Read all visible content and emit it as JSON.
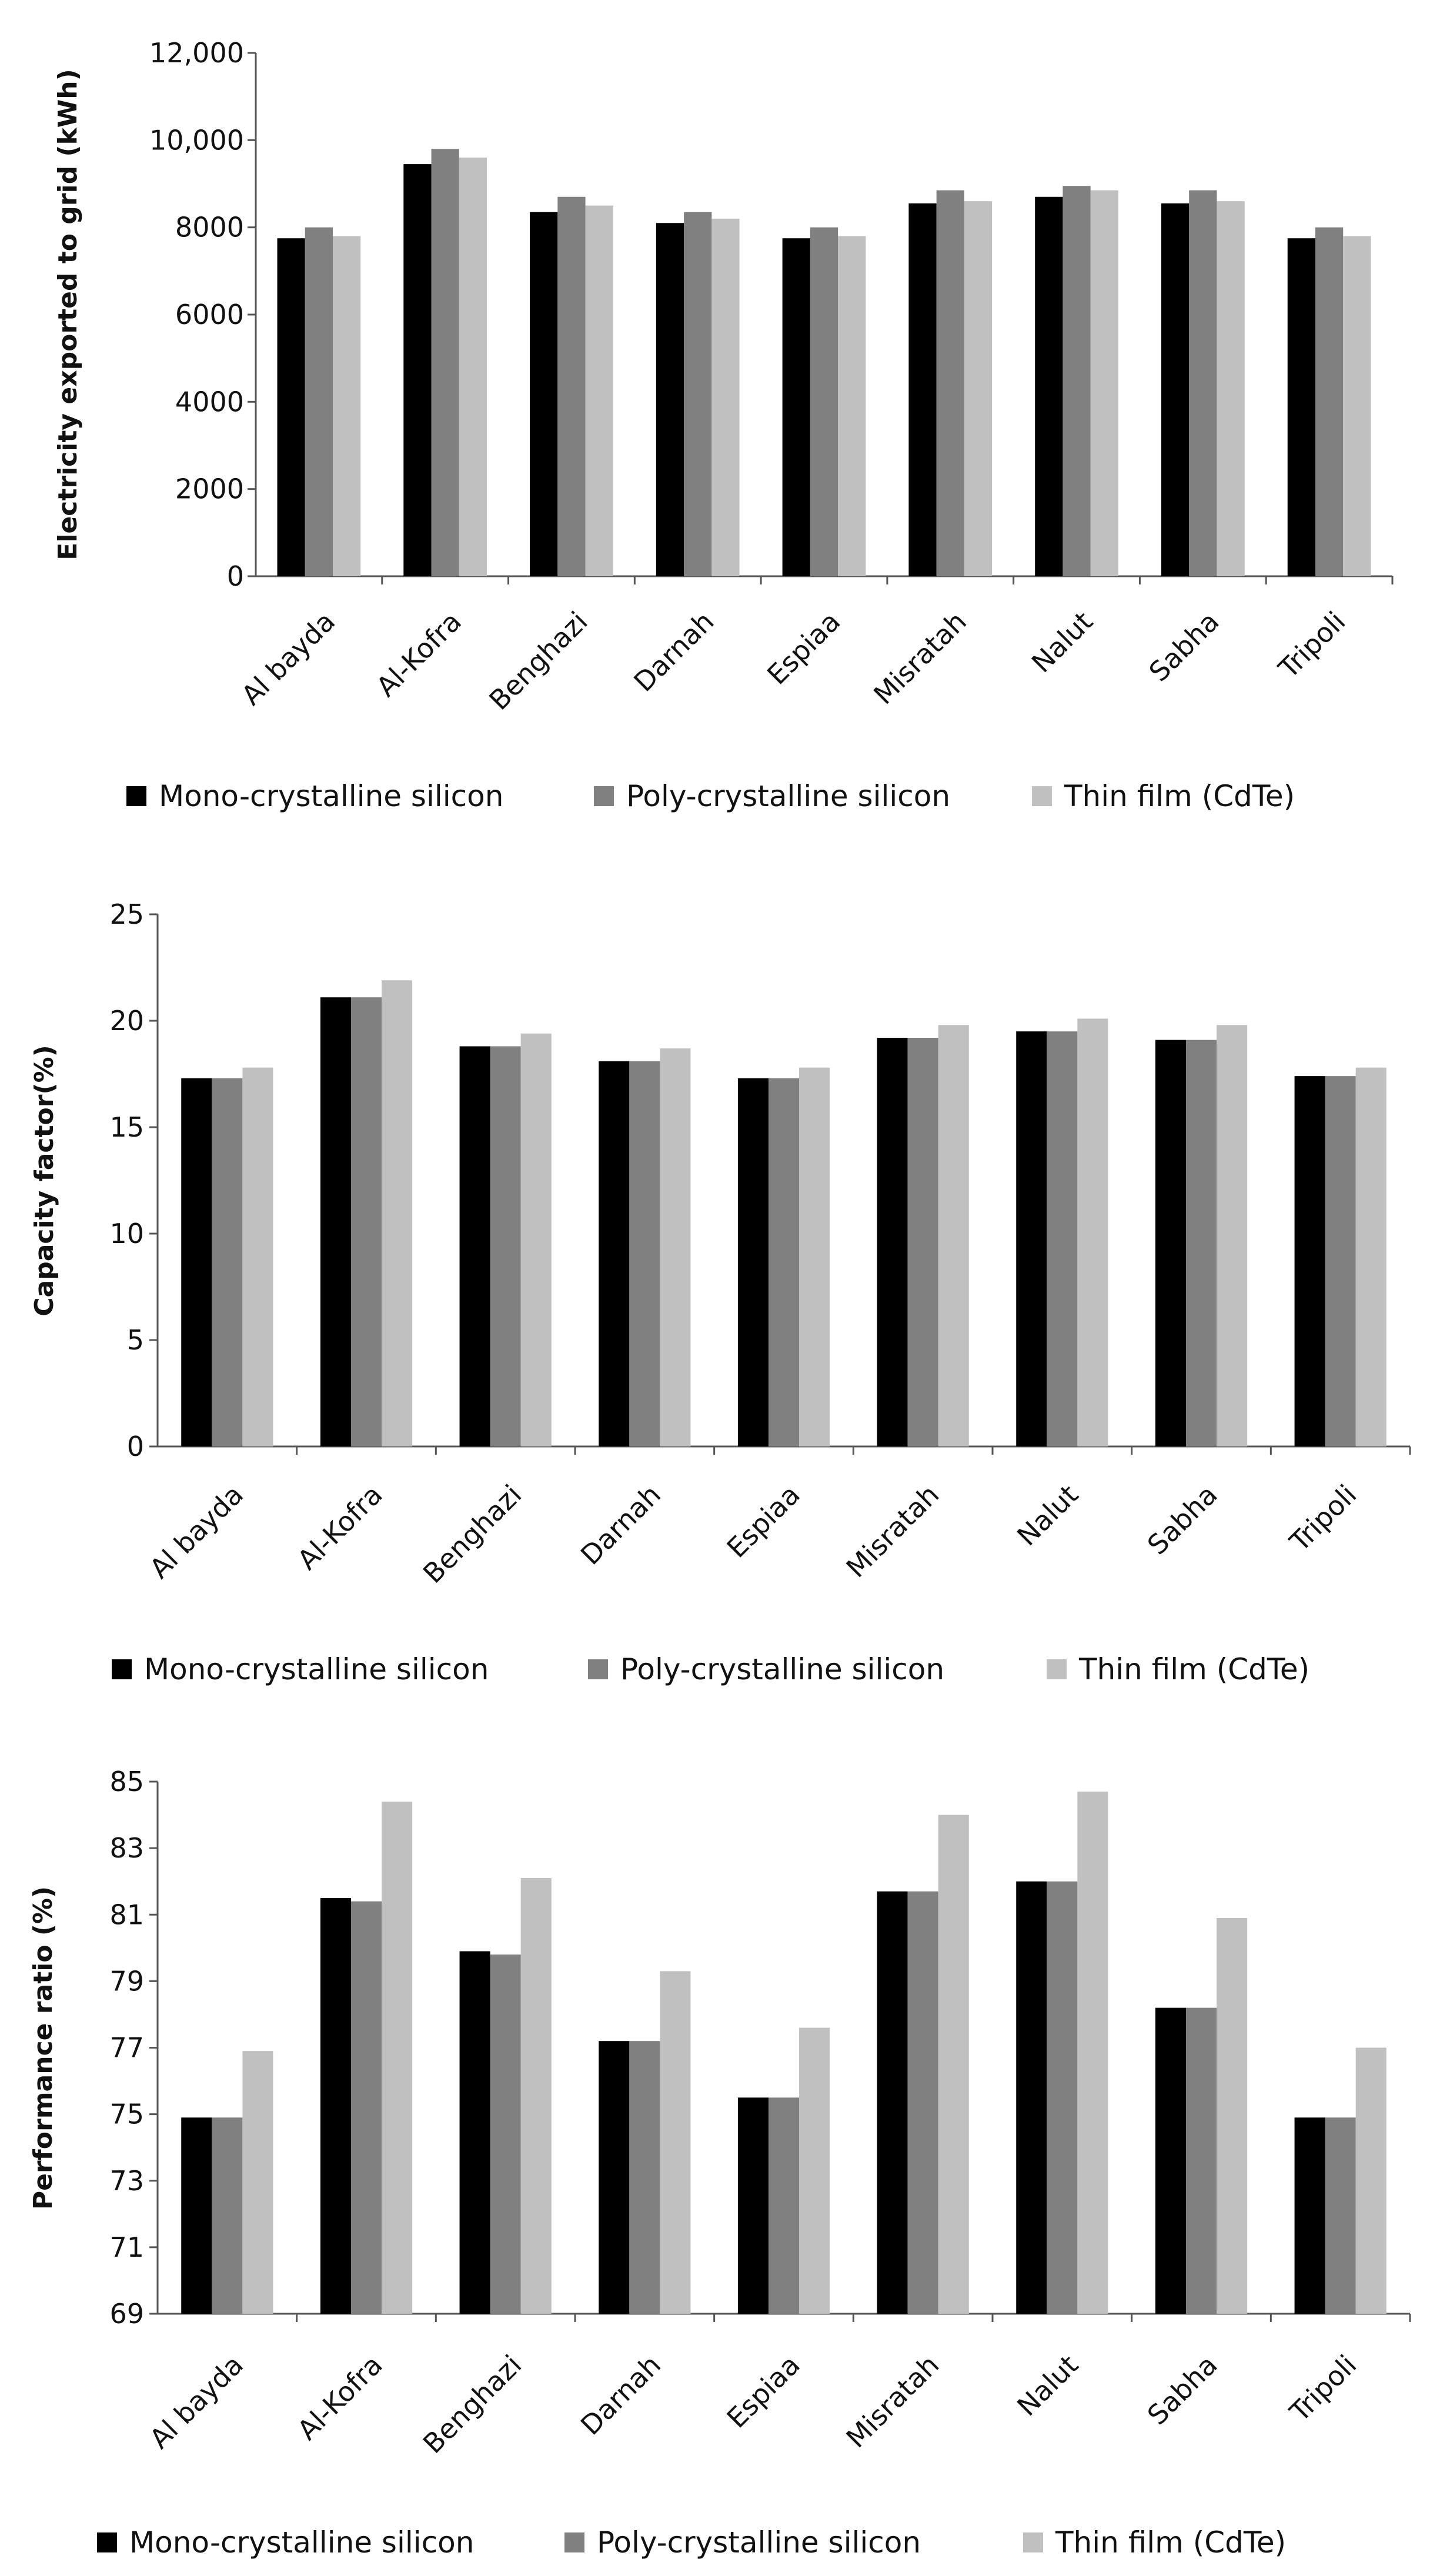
{
  "chart_data": [
    {
      "type": "bar",
      "title": "",
      "xlabel": "",
      "ylabel": "Electricity exported to grid (kWh)",
      "ylim": [
        0,
        12000
      ],
      "yticks": [
        0,
        2000,
        4000,
        6000,
        8000,
        10000,
        12000
      ],
      "ytick_labels": [
        "0",
        "2000",
        "4000",
        "6000",
        "8000",
        "10,000",
        "12,000"
      ],
      "categories": [
        "Al bayda",
        "Al-Kofra",
        "Benghazi",
        "Darnah",
        "Espiaa",
        "Misratah",
        "Nalut",
        "Sabha",
        "Tripoli"
      ],
      "series": [
        {
          "name": "Mono-crystalline silicon",
          "color": "#000000",
          "values": [
            7750,
            9450,
            8350,
            8100,
            7750,
            8550,
            8700,
            8550,
            7750
          ]
        },
        {
          "name": "Poly-crystalline silicon",
          "color": "#808080",
          "values": [
            8000,
            9800,
            8700,
            8350,
            8000,
            8850,
            8950,
            8850,
            8000
          ]
        },
        {
          "name": "Thin film (CdTe)",
          "color": "#c0c0c0",
          "values": [
            7800,
            9600,
            8500,
            8200,
            7800,
            8600,
            8850,
            8600,
            7800
          ]
        }
      ],
      "legend_position": "bottom"
    },
    {
      "type": "bar",
      "title": "",
      "xlabel": "",
      "ylabel": "Capacity factor(%)",
      "ylim": [
        0,
        25
      ],
      "yticks": [
        0,
        5,
        10,
        15,
        20,
        25
      ],
      "ytick_labels": [
        "0",
        "5",
        "10",
        "15",
        "20",
        "25"
      ],
      "categories": [
        "Al bayda",
        "Al-Kofra",
        "Benghazi",
        "Darnah",
        "Espiaa",
        "Misratah",
        "Nalut",
        "Sabha",
        "Tripoli"
      ],
      "series": [
        {
          "name": "Mono-crystalline silicon",
          "color": "#000000",
          "values": [
            17.3,
            21.1,
            18.8,
            18.1,
            17.3,
            19.2,
            19.5,
            19.1,
            17.4
          ]
        },
        {
          "name": "Poly-crystalline silicon",
          "color": "#808080",
          "values": [
            17.3,
            21.1,
            18.8,
            18.1,
            17.3,
            19.2,
            19.5,
            19.1,
            17.4
          ]
        },
        {
          "name": "Thin film (CdTe)",
          "color": "#c0c0c0",
          "values": [
            17.8,
            21.9,
            19.4,
            18.7,
            17.8,
            19.8,
            20.1,
            19.8,
            17.8
          ]
        }
      ],
      "legend_position": "bottom"
    },
    {
      "type": "bar",
      "title": "",
      "xlabel": "",
      "ylabel": "Performance ratio (%)",
      "ylim": [
        69,
        85
      ],
      "yticks": [
        69,
        71,
        73,
        75,
        77,
        79,
        81,
        83,
        85
      ],
      "ytick_labels": [
        "69",
        "71",
        "73",
        "75",
        "77",
        "79",
        "81",
        "83",
        "85"
      ],
      "categories": [
        "Al bayda",
        "Al-Kofra",
        "Benghazi",
        "Darnah",
        "Espiaa",
        "Misratah",
        "Nalut",
        "Sabha",
        "Tripoli"
      ],
      "series": [
        {
          "name": "Mono-crystalline silicon",
          "color": "#000000",
          "values": [
            74.9,
            81.5,
            79.9,
            77.2,
            75.5,
            81.7,
            82.0,
            78.2,
            74.9
          ]
        },
        {
          "name": "Poly-crystalline silicon",
          "color": "#808080",
          "values": [
            74.9,
            81.4,
            79.8,
            77.2,
            75.5,
            81.7,
            82.0,
            78.2,
            74.9
          ]
        },
        {
          "name": "Thin film (CdTe)",
          "color": "#c0c0c0",
          "values": [
            76.9,
            84.4,
            82.1,
            79.3,
            77.6,
            84.0,
            84.7,
            80.9,
            77.0
          ]
        }
      ],
      "legend_position": "bottom"
    }
  ]
}
